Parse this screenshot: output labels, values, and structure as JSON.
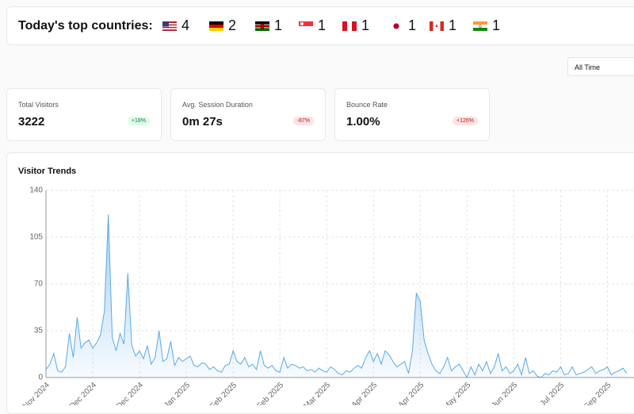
{
  "header": {
    "title": "Today's top countries:",
    "countries": [
      4,
      2,
      1,
      1,
      1,
      1,
      1,
      1
    ]
  },
  "filter": "All Time",
  "stats": [
    {
      "label": "Total Visitors",
      "value": "3222",
      "change": "+18%"
    },
    {
      "label": "Avg. Session Duration",
      "value": "0m 27s",
      "change": "-87%"
    },
    {
      "label": "Bounce Rate",
      "value": "1.00%",
      "change": "+126%"
    }
  ],
  "chart_data": {
    "type": "area",
    "title": "Visitor Trends",
    "color": "#5aa9e6",
    "categories": [
      "Nov 2024",
      null,
      null,
      null,
      null,
      null,
      null,
      null,
      null,
      null,
      null,
      null,
      "Dec 2024",
      null,
      null,
      null,
      null,
      null,
      null,
      null,
      null,
      null,
      null,
      null,
      "Dec 2024",
      null,
      null,
      null,
      null,
      null,
      null,
      null,
      null,
      null,
      null,
      null,
      "Jan 2025",
      null,
      null,
      null,
      null,
      null,
      null,
      null,
      null,
      null,
      null,
      null,
      "Feb 2025",
      null,
      null,
      null,
      null,
      null,
      null,
      null,
      null,
      null,
      null,
      null,
      "Feb 2025",
      null,
      null,
      null,
      null,
      null,
      null,
      null,
      null,
      null,
      null,
      null,
      "Mar 2025",
      null,
      null,
      null,
      null,
      null,
      null,
      null,
      null,
      null,
      null,
      null,
      "Apr 2025",
      null,
      null,
      null,
      null,
      null,
      null,
      null,
      null,
      null,
      null,
      null,
      "Apr 2025",
      null,
      null,
      null,
      null,
      null,
      null,
      null,
      null,
      null,
      null,
      null,
      "May 2025",
      null,
      null,
      null,
      null,
      null,
      null,
      null,
      null,
      null,
      null,
      null,
      "Jun 2025",
      null,
      null,
      null,
      null,
      null,
      null,
      null,
      null,
      null,
      null,
      null,
      "Jul 2025",
      null,
      null,
      null,
      null,
      null,
      null,
      null,
      null,
      null,
      null,
      null,
      "Sep 2025",
      null,
      null,
      null,
      null,
      null
    ],
    "values": [
      6,
      10,
      18,
      5,
      4,
      8,
      33,
      15,
      45,
      22,
      26,
      28,
      22,
      26,
      32,
      50,
      122,
      30,
      20,
      33,
      25,
      78,
      24,
      16,
      20,
      14,
      24,
      10,
      15,
      35,
      12,
      14,
      27,
      9,
      15,
      12,
      14,
      16,
      9,
      8,
      11,
      10,
      6,
      8,
      5,
      4,
      9,
      10,
      20,
      12,
      10,
      15,
      8,
      10,
      6,
      20,
      9,
      7,
      9,
      5,
      4,
      15,
      7,
      10,
      9,
      7,
      8,
      5,
      6,
      4,
      7,
      5,
      4,
      8,
      6,
      3,
      2,
      5,
      4,
      7,
      9,
      7,
      15,
      20,
      12,
      18,
      10,
      20,
      17,
      12,
      8,
      10,
      12,
      3,
      20,
      63,
      57,
      28,
      18,
      10,
      5,
      3,
      8,
      15,
      5,
      8,
      10,
      5,
      0,
      8,
      2,
      10,
      5,
      12,
      3,
      8,
      18,
      5,
      8,
      3,
      5,
      10,
      2,
      15,
      3,
      5,
      1,
      0,
      3,
      2,
      5,
      4,
      8,
      2,
      3,
      8,
      2,
      3,
      4,
      6,
      8,
      3,
      5,
      6,
      8,
      2,
      4,
      5,
      7,
      3
    ],
    "ylim": [
      0,
      140
    ],
    "yticks": [
      0,
      35,
      70,
      105,
      140
    ],
    "grid": true
  }
}
